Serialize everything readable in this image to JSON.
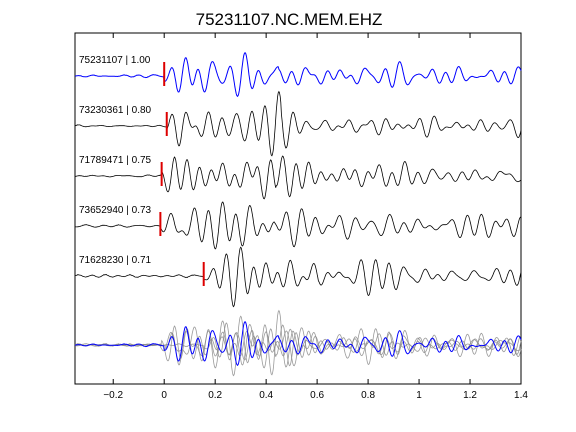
{
  "chart_data": {
    "type": "line",
    "title": "75231107.NC.MEM.EHZ",
    "xlabel": "",
    "ylabel": "",
    "xlim": [
      -0.35,
      1.4
    ],
    "x_ticks": [
      -0.2,
      0,
      0.2,
      0.4,
      0.6,
      0.8,
      1,
      1.2,
      1.4
    ],
    "x_tick_labels": [
      "−0.2",
      "0",
      "0.2",
      "0.4",
      "0.6",
      "0.8",
      "1",
      "1.2",
      "1.4"
    ],
    "grid": false,
    "legend": "none",
    "colors": {
      "reference": "#0000ff",
      "trace": "#000000",
      "overlay": "#888888",
      "pick": "#dd0000"
    },
    "series": [
      {
        "label": "75231107 | 1.00",
        "id": "75231107",
        "cc": 1.0,
        "pick_time": 0.0,
        "reference": true
      },
      {
        "label": "73230361 | 0.80",
        "id": "73230361",
        "cc": 0.8,
        "pick_time": 0.01,
        "reference": false
      },
      {
        "label": "71789471 | 0.75",
        "id": "71789471",
        "cc": 0.75,
        "pick_time": -0.01,
        "reference": false
      },
      {
        "label": "73652940 | 0.73",
        "id": "73652940",
        "cc": 0.73,
        "pick_time": -0.015,
        "reference": false
      },
      {
        "label": "71628230 | 0.71",
        "id": "71628230",
        "cc": 0.71,
        "pick_time": 0.155,
        "reference": false
      }
    ],
    "overlay": {
      "description_in_picture": false,
      "members": [
        "75231107",
        "73230361",
        "71789471",
        "73652940",
        "71628230"
      ]
    }
  }
}
